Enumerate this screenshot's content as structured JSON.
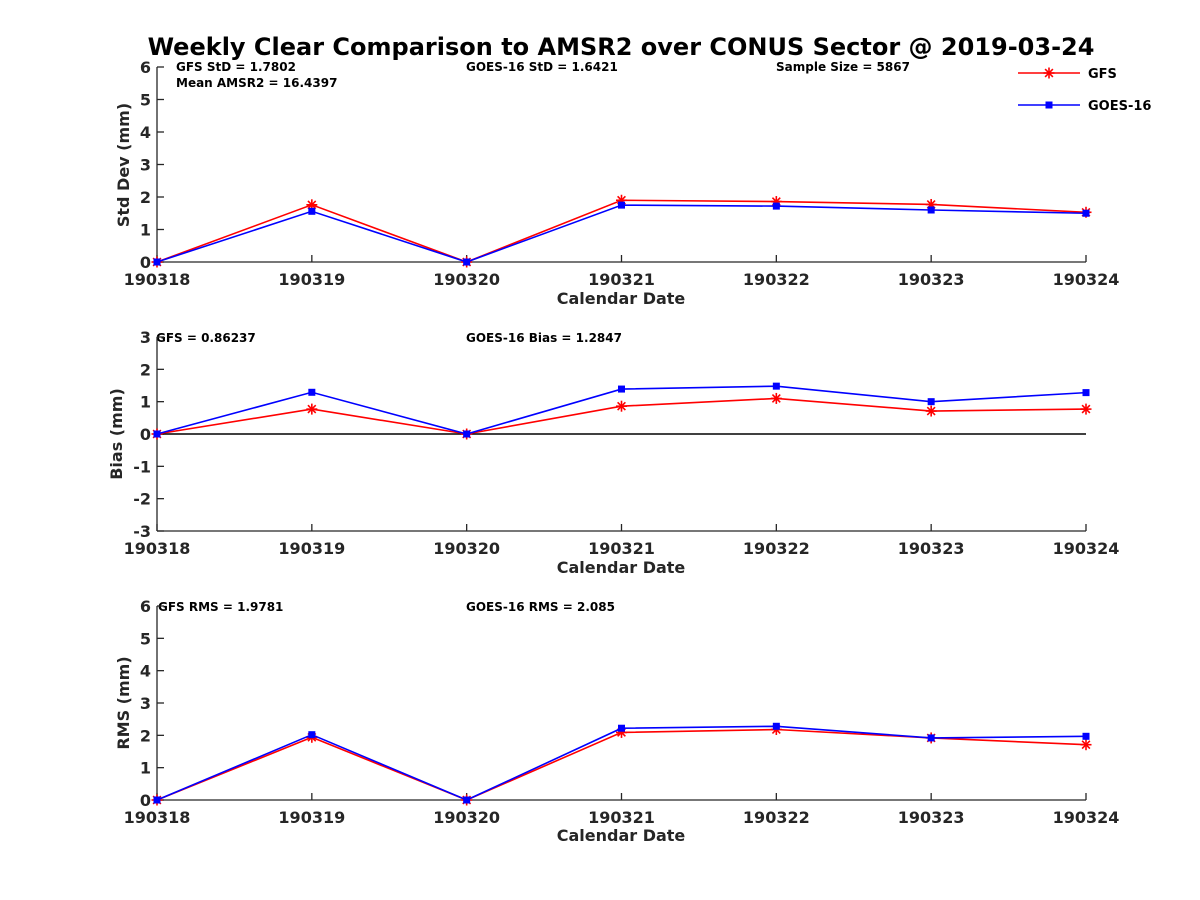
{
  "figure_title": "Weekly Clear Comparison to AMSR2 over CONUS Sector @ 2019-03-24",
  "legend": [
    {
      "label": "GFS",
      "color": "#ff0000",
      "marker": "asterisk"
    },
    {
      "label": "GOES-16",
      "color": "#0000ff",
      "marker": "square"
    }
  ],
  "annotations": {
    "std": [
      "GFS StD = 1.7802",
      "Mean AMSR2 = 16.4397",
      "GOES-16 StD = 1.6421",
      "Sample Size = 5867"
    ],
    "bias": [
      "GFS = 0.86237",
      "GOES-16 Bias  = 1.2847"
    ],
    "rms": [
      "GFS RMS = 1.9781",
      "GOES-16 RMS = 2.085"
    ]
  },
  "chart_data": [
    {
      "type": "line",
      "title": "",
      "xlabel": "Calendar Date",
      "ylabel": "Std Dev (mm)",
      "categories": [
        "190318",
        "190319",
        "190320",
        "190321",
        "190322",
        "190323",
        "190324"
      ],
      "ylim": [
        0,
        6
      ],
      "yticks": [
        "0",
        "1",
        "2",
        "3",
        "4",
        "5",
        "6"
      ],
      "zero_line": false,
      "series": [
        {
          "name": "GFS",
          "color": "#ff0000",
          "marker": "asterisk",
          "values": [
            0,
            1.76,
            0,
            1.9,
            1.86,
            1.77,
            1.53
          ]
        },
        {
          "name": "GOES-16",
          "color": "#0000ff",
          "marker": "square",
          "values": [
            0,
            1.56,
            0,
            1.75,
            1.72,
            1.6,
            1.5
          ]
        }
      ]
    },
    {
      "type": "line",
      "title": "",
      "xlabel": "Calendar Date",
      "ylabel": "Bias (mm)",
      "categories": [
        "190318",
        "190319",
        "190320",
        "190321",
        "190322",
        "190323",
        "190324"
      ],
      "ylim": [
        -3,
        3
      ],
      "yticks": [
        "-3",
        "-2",
        "-1",
        "0",
        "1",
        "2",
        "3"
      ],
      "zero_line": true,
      "series": [
        {
          "name": "GFS",
          "color": "#ff0000",
          "marker": "asterisk",
          "values": [
            0,
            0.77,
            0,
            0.86,
            1.1,
            0.71,
            0.77
          ]
        },
        {
          "name": "GOES-16",
          "color": "#0000ff",
          "marker": "square",
          "values": [
            0,
            1.29,
            0,
            1.39,
            1.48,
            1.0,
            1.28
          ]
        }
      ]
    },
    {
      "type": "line",
      "title": "",
      "xlabel": "Calendar Date",
      "ylabel": "RMS (mm)",
      "categories": [
        "190318",
        "190319",
        "190320",
        "190321",
        "190322",
        "190323",
        "190324"
      ],
      "ylim": [
        0,
        6
      ],
      "yticks": [
        "0",
        "1",
        "2",
        "3",
        "4",
        "5",
        "6"
      ],
      "zero_line": false,
      "series": [
        {
          "name": "GFS",
          "color": "#ff0000",
          "marker": "asterisk",
          "values": [
            0,
            1.94,
            0,
            2.09,
            2.18,
            1.92,
            1.71
          ]
        },
        {
          "name": "GOES-16",
          "color": "#0000ff",
          "marker": "square",
          "values": [
            0,
            2.02,
            0,
            2.22,
            2.28,
            1.92,
            1.97
          ]
        }
      ]
    }
  ]
}
